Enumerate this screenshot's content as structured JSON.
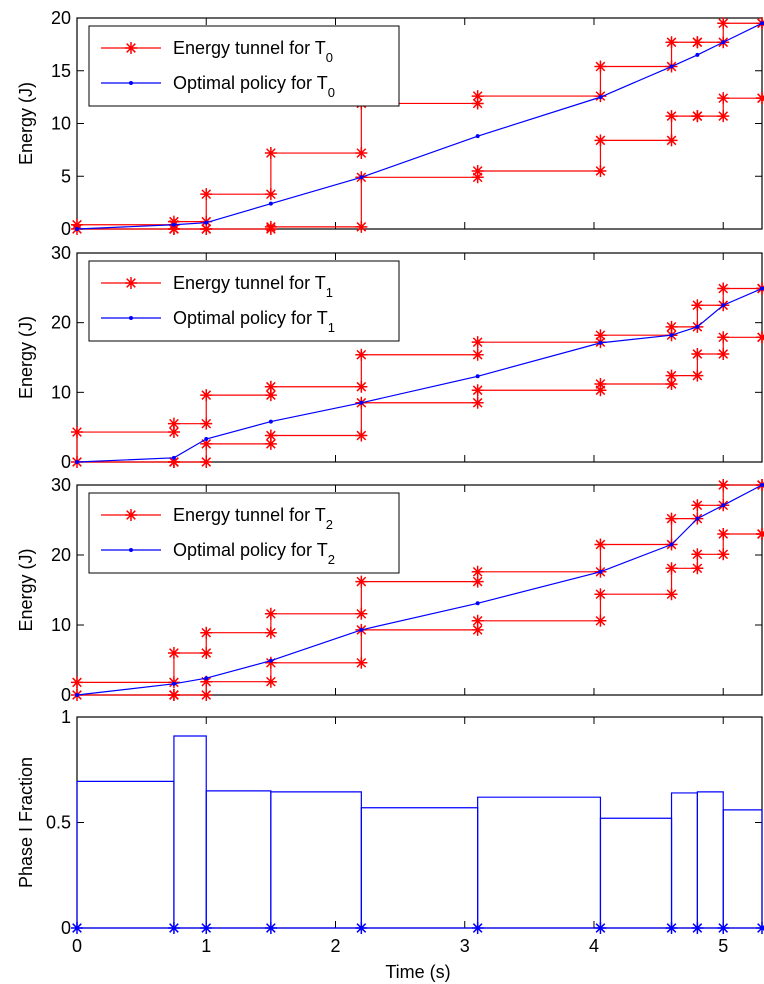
{
  "colors": {
    "tunnel": "#ff0000",
    "policy": "#0000ff",
    "axes": "#000000"
  },
  "xlabel": "Time (s)",
  "xticks": [
    0,
    1,
    2,
    3,
    4,
    5
  ],
  "xlim": [
    0,
    5.3
  ],
  "chart_data": [
    {
      "type": "line",
      "ylabel": "Energy (J)",
      "ylim": [
        0,
        20
      ],
      "yticks": [
        0,
        5,
        10,
        15,
        20
      ],
      "legend": {
        "placement": "top-left",
        "tunnel": {
          "text": "Energy tunnel for T",
          "sub": "0"
        },
        "policy": {
          "text": "Optimal policy for T",
          "sub": "0"
        }
      },
      "tunnel_upper": {
        "x": [
          0,
          0.75,
          1.0,
          1.5,
          2.2,
          3.1,
          4.05,
          4.6,
          4.8,
          5.0,
          5.3
        ],
        "y": [
          0.4,
          0.7,
          3.3,
          7.2,
          11.9,
          12.6,
          15.4,
          17.7,
          17.7,
          19.5,
          19.5
        ]
      },
      "tunnel_lower": {
        "x": [
          0,
          0.75,
          1.0,
          1.5,
          2.2,
          3.1,
          4.05,
          4.6,
          4.8,
          5.0,
          5.3
        ],
        "y": [
          0.0,
          0.0,
          0.0,
          0.2,
          4.9,
          5.5,
          8.4,
          10.7,
          10.7,
          12.4,
          12.4
        ]
      },
      "policy": {
        "x": [
          0,
          0.75,
          1.0,
          1.5,
          2.2,
          3.1,
          4.05,
          4.6,
          4.8,
          5.0,
          5.3
        ],
        "y": [
          0.0,
          0.4,
          0.6,
          2.4,
          4.9,
          8.8,
          12.5,
          15.4,
          16.5,
          17.7,
          19.5
        ]
      }
    },
    {
      "type": "line",
      "ylabel": "Energy (J)",
      "ylim": [
        0,
        30
      ],
      "yticks": [
        0,
        10,
        20,
        30
      ],
      "legend": {
        "placement": "top-left",
        "tunnel": {
          "text": "Energy tunnel for T",
          "sub": "1"
        },
        "policy": {
          "text": "Optimal policy for T",
          "sub": "1"
        }
      },
      "tunnel_upper": {
        "x": [
          0,
          0.75,
          1.0,
          1.5,
          2.2,
          3.1,
          4.05,
          4.6,
          4.8,
          5.0,
          5.3
        ],
        "y": [
          4.3,
          5.5,
          9.6,
          10.8,
          15.4,
          17.2,
          18.2,
          19.4,
          22.5,
          24.9,
          24.9
        ]
      },
      "tunnel_lower": {
        "x": [
          0,
          0.75,
          1.0,
          1.5,
          2.2,
          3.1,
          4.05,
          4.6,
          4.8,
          5.0,
          5.3
        ],
        "y": [
          0.0,
          0.0,
          2.6,
          3.8,
          8.5,
          10.3,
          11.2,
          12.4,
          15.5,
          17.9,
          17.9
        ]
      },
      "policy": {
        "x": [
          0,
          0.75,
          1.0,
          1.5,
          2.2,
          3.1,
          4.05,
          4.6,
          4.8,
          5.0,
          5.3
        ],
        "y": [
          0.0,
          0.6,
          3.3,
          5.8,
          8.5,
          12.3,
          17.1,
          18.2,
          19.4,
          22.5,
          24.9
        ]
      }
    },
    {
      "type": "line",
      "ylabel": "Energy (J)",
      "ylim": [
        0,
        30
      ],
      "yticks": [
        0,
        10,
        20,
        30
      ],
      "legend": {
        "placement": "top-left",
        "tunnel": {
          "text": "Energy tunnel for T",
          "sub": "2"
        },
        "policy": {
          "text": "Optimal policy for T",
          "sub": "2"
        }
      },
      "tunnel_upper": {
        "x": [
          0,
          0.75,
          1.0,
          1.5,
          2.2,
          3.1,
          4.05,
          4.6,
          4.8,
          5.0,
          5.3
        ],
        "y": [
          1.8,
          6.0,
          8.9,
          11.6,
          16.2,
          17.6,
          21.5,
          25.2,
          27.1,
          30.0,
          30.0
        ]
      },
      "tunnel_lower": {
        "x": [
          0,
          0.75,
          1.0,
          1.5,
          2.2,
          3.1,
          4.05,
          4.6,
          4.8,
          5.0,
          5.3
        ],
        "y": [
          0.0,
          0.0,
          1.9,
          4.6,
          9.3,
          10.6,
          14.4,
          18.1,
          20.1,
          23.0,
          23.0
        ]
      },
      "policy": {
        "x": [
          0,
          0.75,
          1.0,
          1.5,
          2.2,
          3.1,
          4.05,
          4.6,
          4.8,
          5.0,
          5.3
        ],
        "y": [
          0.0,
          1.6,
          2.4,
          4.9,
          9.3,
          13.1,
          17.6,
          21.5,
          25.2,
          27.1,
          30.0
        ]
      }
    },
    {
      "type": "step",
      "ylabel": "Phase I Fraction",
      "ylim": [
        0,
        1
      ],
      "yticks": [
        0,
        0.5,
        1
      ],
      "segments": [
        {
          "x0": 0,
          "x1": 0.75,
          "y": 0.695
        },
        {
          "x0": 0.75,
          "x1": 1.0,
          "y": 0.91
        },
        {
          "x0": 1.0,
          "x1": 1.5,
          "y": 0.65
        },
        {
          "x0": 1.5,
          "x1": 2.2,
          "y": 0.645
        },
        {
          "x0": 2.2,
          "x1": 3.1,
          "y": 0.57
        },
        {
          "x0": 3.1,
          "x1": 4.05,
          "y": 0.62
        },
        {
          "x0": 4.05,
          "x1": 4.6,
          "y": 0.52
        },
        {
          "x0": 4.6,
          "x1": 4.8,
          "y": 0.64
        },
        {
          "x0": 4.8,
          "x1": 5.0,
          "y": 0.645
        },
        {
          "x0": 5.0,
          "x1": 5.3,
          "y": 0.56
        }
      ],
      "markers_x": [
        0,
        0.75,
        1.0,
        1.5,
        2.2,
        3.1,
        4.05,
        4.6,
        4.8,
        5.0,
        5.3
      ]
    }
  ]
}
